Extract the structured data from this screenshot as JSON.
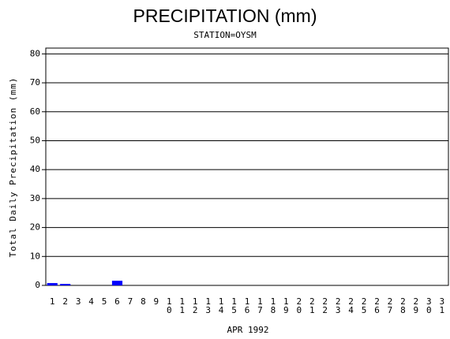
{
  "chart_data": {
    "type": "bar",
    "title": "PRECIPITATION (mm)",
    "subtitle": "STATION=OYSM",
    "x_label": "APR 1992",
    "y_label": "Total Daily Precipitation (mm)",
    "categories": [
      "1",
      "2",
      "3",
      "4",
      "5",
      "6",
      "7",
      "8",
      "9",
      "10",
      "11",
      "12",
      "13",
      "14",
      "15",
      "16",
      "17",
      "18",
      "19",
      "20",
      "21",
      "22",
      "23",
      "24",
      "25",
      "26",
      "27",
      "28",
      "29",
      "30",
      "31"
    ],
    "values": [
      0.8,
      0.5,
      0,
      0,
      0,
      1.6,
      0,
      0,
      0,
      0,
      0,
      0,
      0,
      0,
      0,
      0,
      0,
      0,
      0,
      0,
      0,
      0,
      0,
      0,
      0,
      0,
      0,
      0,
      0,
      0,
      0
    ],
    "color": "#0000ff",
    "ylim": [
      0,
      82
    ],
    "yticks": [
      0,
      10,
      20,
      30,
      40,
      50,
      60,
      70,
      80
    ],
    "grid": true
  }
}
